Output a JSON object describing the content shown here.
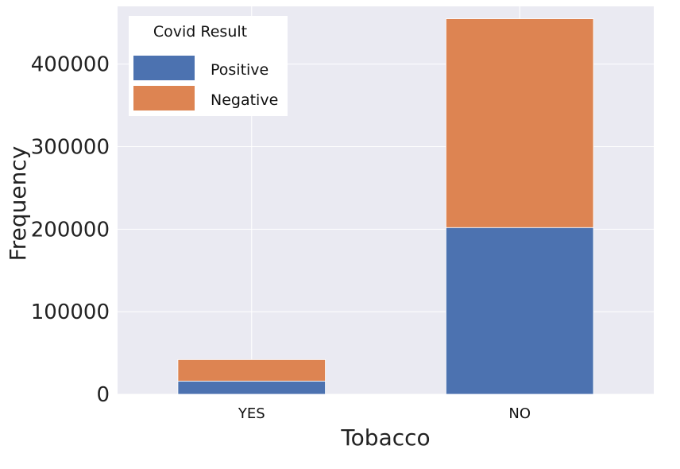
{
  "chart_data": {
    "type": "bar",
    "stacked": true,
    "title": "",
    "xlabel": "Tobacco",
    "ylabel": "Frequency",
    "categories": [
      "YES",
      "NO"
    ],
    "series": [
      {
        "name": "Positive",
        "values": [
          16000,
          202000
        ],
        "color": "#4C72B0"
      },
      {
        "name": "Negative",
        "values": [
          26000,
          253000
        ],
        "color": "#DD8452"
      }
    ],
    "ylim": [
      0,
      470000
    ],
    "yticks": [
      0,
      100000,
      200000,
      300000,
      400000
    ],
    "ytick_labels": [
      "0",
      "100000",
      "200000",
      "300000",
      "400000"
    ],
    "grid": true,
    "background": "#EAEAF2",
    "legend": {
      "title": "Covid Result",
      "placement": "top-left",
      "entries": [
        "Positive",
        "Negative"
      ]
    }
  }
}
